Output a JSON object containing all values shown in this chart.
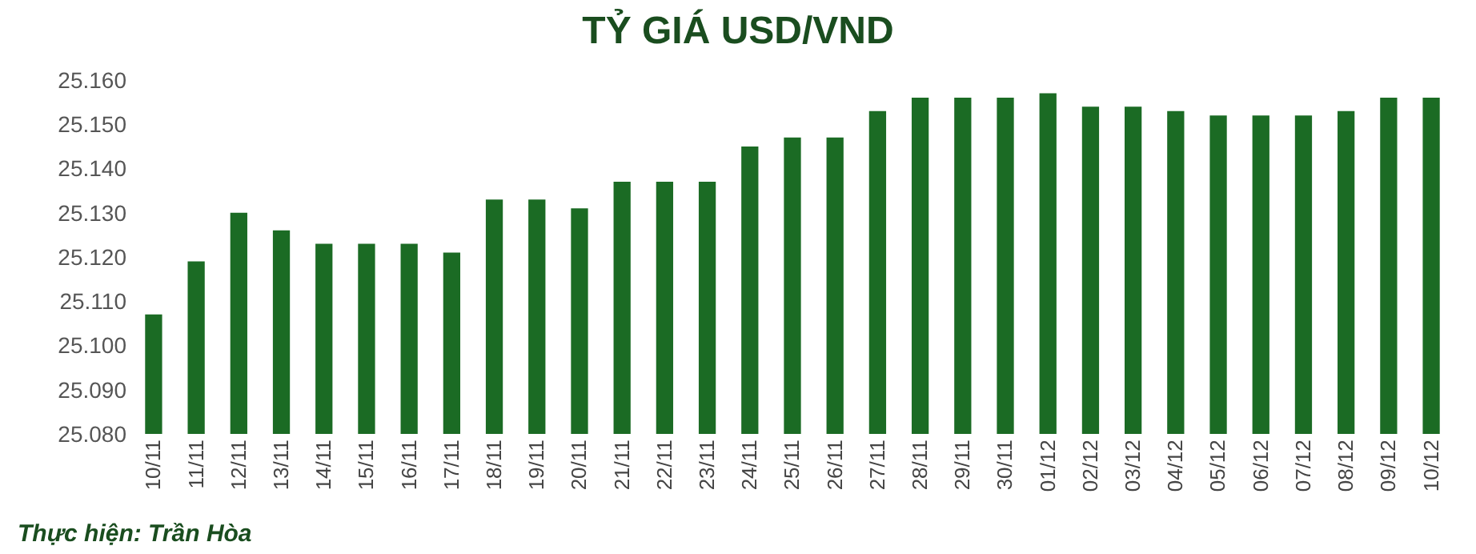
{
  "chart_data": {
    "type": "bar",
    "title": "TỶ GIÁ USD/VND",
    "categories": [
      "10/11",
      "11/11",
      "12/11",
      "13/11",
      "14/11",
      "15/11",
      "16/11",
      "17/11",
      "18/11",
      "19/11",
      "20/11",
      "21/11",
      "22/11",
      "23/11",
      "24/11",
      "25/11",
      "26/11",
      "27/11",
      "28/11",
      "29/11",
      "30/11",
      "01/12",
      "02/12",
      "03/12",
      "04/12",
      "05/12",
      "06/12",
      "07/12",
      "08/12",
      "09/12",
      "10/12"
    ],
    "values": [
      25107,
      25119,
      25130,
      25126,
      25123,
      25123,
      25123,
      25121,
      25133,
      25133,
      25131,
      25137,
      25137,
      25137,
      25145,
      25147,
      25147,
      25153,
      25156,
      25156,
      25156,
      25157,
      25154,
      25154,
      25153,
      25152,
      25152,
      25152,
      25153,
      25156,
      25156
    ],
    "color": "#1b6b24",
    "ylim": [
      25080,
      25160
    ],
    "yticks": [
      {
        "value": 25080,
        "label": "25.080"
      },
      {
        "value": 25090,
        "label": "25.090"
      },
      {
        "value": 25100,
        "label": "25.100"
      },
      {
        "value": 25110,
        "label": "25.110"
      },
      {
        "value": 25120,
        "label": "25.120"
      },
      {
        "value": 25130,
        "label": "25.130"
      },
      {
        "value": 25140,
        "label": "25.140"
      },
      {
        "value": 25150,
        "label": "25.150"
      },
      {
        "value": 25160,
        "label": "25.160"
      }
    ],
    "grid": false,
    "legend": false,
    "annotations": [
      "Thực hiện: Trần Hòa"
    ]
  }
}
